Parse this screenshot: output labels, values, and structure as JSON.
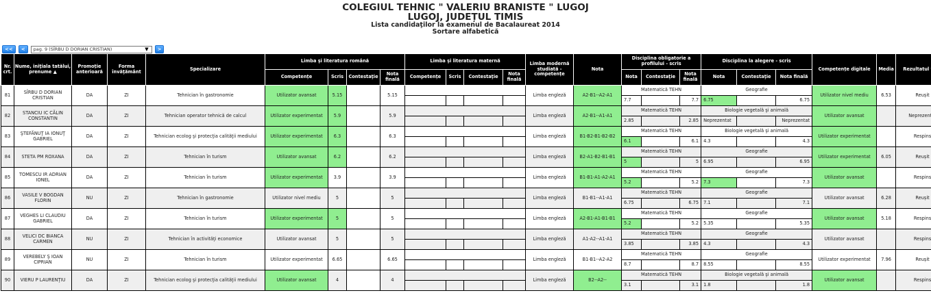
{
  "header": {
    "school": "COLEGIUL TEHNIC \" VALERIU BRANISTE \" LUGOJ",
    "location": "LUGOJ, JUDEȚUL TIMIS",
    "subtitle": "Lista candidaţilor la examenul de Bacalaureat 2014",
    "sort": "Sortare alfabetică"
  },
  "pager": {
    "first": "<<",
    "prev": "<",
    "selected": "pag. 9 (SÎRBU D DORIAN CRISTIAN)",
    "next": ">"
  },
  "columns": {
    "nr": "Nr. crt.",
    "name": "Nume, iniţiala tatălui, prenume ▲",
    "promotie": "Promoție anterioară",
    "forma": "Forma învăţământ",
    "spec": "Specializare",
    "romana": "Limba şi literatura română",
    "materna": "Limba şi literatura maternă",
    "competente": "Competențe",
    "scris": "Scris",
    "contestatie": "Contestaţie",
    "nota_finala": "Nota finală",
    "moderna": "Limba modernă studiată - competențe",
    "nota": "Nota",
    "obligatorie": "Disciplina obligatorie a profilului - scris",
    "alegere": "Disciplina la alegere - scris",
    "digitale": "Competențe digitale",
    "media": "Media",
    "rezultat": "Rezultatul final"
  },
  "colors": {
    "header_bg": "#000000",
    "highlight": "#90ee90",
    "alt_row": "#efefef",
    "button": "#1e7ee6"
  },
  "rows": [
    {
      "nr": "81",
      "name": "SÎRBU D DORIAN CRISTIAN",
      "prom": "DA",
      "forma": "ZI",
      "spec": "Tehnician în gastronomie",
      "comp": "Utilizator avansat",
      "scris": "5.15",
      "nf": "5.15",
      "lm": "Limba engleză",
      "nota": "A2-B1--A2-A1",
      "obl": "Matematică TEHN",
      "obl_n": "7.7",
      "obl_nf": "7.7",
      "ale": "Geografie",
      "ale_n": "6.75",
      "ale_nf": "6.75",
      "dig": "Utilizator nivel mediu",
      "media": "6.53",
      "rez": "Reușit",
      "green": [
        true,
        true,
        true,
        false,
        true,
        true
      ]
    },
    {
      "nr": "82",
      "name": "STANCIU IC CĂLIN CONSTANTIN",
      "prom": "DA",
      "forma": "ZI",
      "spec": "Tehnician operator tehnică de calcul",
      "comp": "Utilizator experimentat",
      "scris": "5.9",
      "nf": "5.9",
      "lm": "Limba engleză",
      "nota": "A2-B1--A1-A1",
      "obl": "Matematică TEHN",
      "obl_n": "2.85",
      "obl_nf": "2.85",
      "ale": "Biologie vegetală şi animală",
      "ale_n": "Neprezentat",
      "ale_nf": "Neprezentat",
      "dig": "Utilizator avansat",
      "media": "",
      "rez": "Neprezentat",
      "green": [
        true,
        true,
        true,
        false,
        false,
        true
      ]
    },
    {
      "nr": "83",
      "name": "ŞTEFĂNUŢ IA IONUŢ GABRIEL",
      "prom": "DA",
      "forma": "ZI",
      "spec": "Tehnician ecolog şi protecţia calităţii mediului",
      "comp": "Utilizator experimentat",
      "scris": "6.3",
      "nf": "6.3",
      "lm": "Limba engleză",
      "nota": "B1-B2-B1-B2-B2",
      "obl": "Matematică TEHN",
      "obl_n": "6.1",
      "obl_nf": "6.1",
      "ale": "Biologie vegetală şi animală",
      "ale_n": "4.3",
      "ale_nf": "4.3",
      "dig": "Utilizator experimentat",
      "media": "",
      "rez": "Respins",
      "green": [
        true,
        true,
        true,
        true,
        false,
        true
      ]
    },
    {
      "nr": "84",
      "name": "STETA PM ROXANA",
      "prom": "DA",
      "forma": "ZI",
      "spec": "Tehnician în turism",
      "comp": "Utilizator avansat",
      "scris": "6.2",
      "nf": "6.2",
      "lm": "Limba engleză",
      "nota": "B2-A1-B2-B1-B1",
      "obl": "Matematică TEHN",
      "obl_n": "5",
      "obl_nf": "5",
      "ale": "Geografie",
      "ale_n": "6.95",
      "ale_nf": "6.95",
      "dig": "Utilizator experimentat",
      "media": "6.05",
      "rez": "Reușit",
      "green": [
        true,
        true,
        true,
        true,
        false,
        true
      ]
    },
    {
      "nr": "85",
      "name": "TOMESCU IR ADRIAN IONEL",
      "prom": "DA",
      "forma": "ZI",
      "spec": "Tehnician în turism",
      "comp": "Utilizator experimentat",
      "scris": "3.9",
      "nf": "3.9",
      "lm": "Limba engleză",
      "nota": "B1-B1-A1-A2-A1",
      "obl": "Matematică TEHN",
      "obl_n": "5.2",
      "obl_nf": "5.2",
      "ale": "Geografie",
      "ale_n": "7.3",
      "ale_nf": "7.3",
      "dig": "Utilizator avansat",
      "media": "",
      "rez": "Respins",
      "green": [
        true,
        false,
        true,
        true,
        true,
        true
      ]
    },
    {
      "nr": "86",
      "name": "VASILE V BOGDAN FLORIN",
      "prom": "NU",
      "forma": "ZI",
      "spec": "Tehnician în gastronomie",
      "comp": "Utilizator nivel mediu",
      "scris": "5",
      "nf": "5",
      "lm": "Limba engleză",
      "nota": "B1-B1--A1-A1",
      "obl": "Matematică TEHN",
      "obl_n": "6.75",
      "obl_nf": "6.75",
      "ale": "Geografie",
      "ale_n": "7.1",
      "ale_nf": "7.1",
      "dig": "Utilizator avansat",
      "media": "6.28",
      "rez": "Reușit",
      "green": [
        false,
        false,
        false,
        false,
        false,
        false
      ]
    },
    {
      "nr": "87",
      "name": "VEGHES LI CLAUDIU GABRIEL",
      "prom": "DA",
      "forma": "ZI",
      "spec": "Tehnician în turism",
      "comp": "Utilizator experimentat",
      "scris": "5",
      "nf": "5",
      "lm": "Limba engleză",
      "nota": "A2-B1-A1-B1-B1",
      "obl": "Matematică TEHN",
      "obl_n": "5.2",
      "obl_nf": "5.2",
      "ale": "Geografie",
      "ale_n": "5.35",
      "ale_nf": "5.35",
      "dig": "Utilizator avansat",
      "media": "5.18",
      "rez": "Respins",
      "green": [
        true,
        true,
        true,
        true,
        false,
        true
      ]
    },
    {
      "nr": "88",
      "name": "VELICI DC BIANCA CARMEN",
      "prom": "NU",
      "forma": "ZI",
      "spec": "Tehnician în activităţi economice",
      "comp": "Utilizator avansat",
      "scris": "5",
      "nf": "5",
      "lm": "Limba engleză",
      "nota": "A1-A2--A1-A1",
      "obl": "Matematică TEHN",
      "obl_n": "3.85",
      "obl_nf": "3.85",
      "ale": "Geografie",
      "ale_n": "4.3",
      "ale_nf": "4.3",
      "dig": "Utilizator avansat",
      "media": "",
      "rez": "Respins",
      "green": [
        false,
        false,
        false,
        false,
        false,
        false
      ]
    },
    {
      "nr": "89",
      "name": "VEREBELY Ş IOAN CIPRIAN",
      "prom": "NU",
      "forma": "ZI",
      "spec": "Tehnician în turism",
      "comp": "Utilizator experimentat",
      "scris": "6.65",
      "nf": "6.65",
      "lm": "Limba engleză",
      "nota": "B1-B1--A2-A2",
      "obl": "Matematică TEHN",
      "obl_n": "8.7",
      "obl_nf": "8.7",
      "ale": "Geografie",
      "ale_n": "8.55",
      "ale_nf": "8.55",
      "dig": "Utilizator experimentat",
      "media": "7.96",
      "rez": "Reușit",
      "green": [
        false,
        false,
        false,
        false,
        false,
        false
      ]
    },
    {
      "nr": "90",
      "name": "VIERU P LAURENŢIU",
      "prom": "DA",
      "forma": "ZI",
      "spec": "Tehnician ecolog şi protecţia calităţii mediului",
      "comp": "Utilizator avansat",
      "scris": "4",
      "nf": "4",
      "lm": "Limba engleză",
      "nota": "B2--A2--",
      "obl": "Matematică TEHN",
      "obl_n": "3.1",
      "obl_nf": "3.1",
      "ale": "Biologie vegetală şi animală",
      "ale_n": "1.8",
      "ale_nf": "1.8",
      "dig": "Utilizator avansat",
      "media": "",
      "rez": "Respins",
      "green": [
        true,
        false,
        true,
        false,
        false,
        true
      ]
    }
  ]
}
